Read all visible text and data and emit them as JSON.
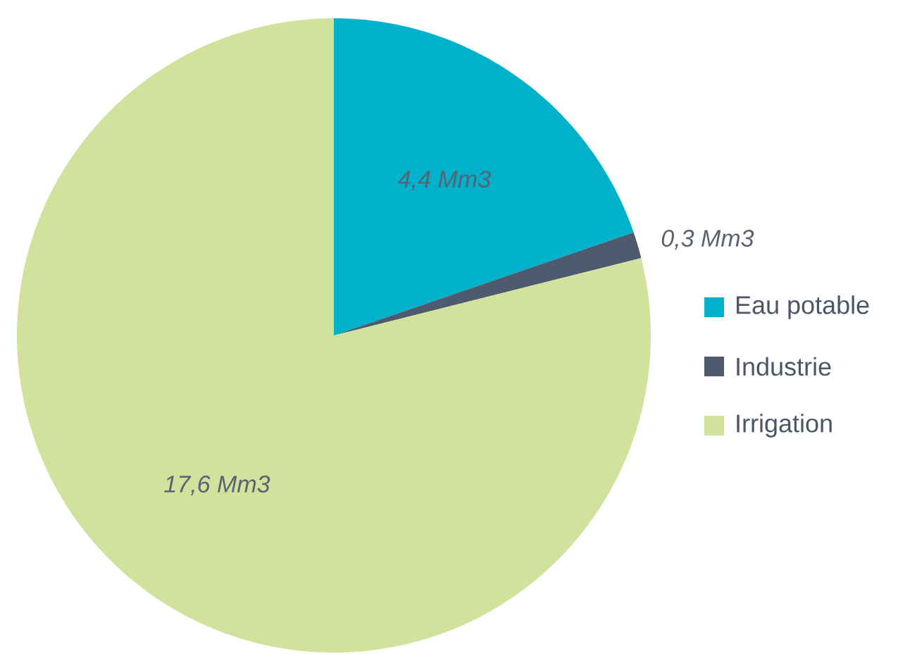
{
  "chart_data": {
    "type": "pie",
    "categories": [
      "Eau potable",
      "Industrie",
      "Irrigation"
    ],
    "values": [
      4.4,
      0.3,
      17.6
    ],
    "colors": [
      "#00b1cb",
      "#4e5a6d",
      "#d0e29b"
    ],
    "value_labels": [
      "4,4 Mm3",
      "0,3 Mm3",
      "17,6 Mm3"
    ],
    "legend": "right"
  }
}
